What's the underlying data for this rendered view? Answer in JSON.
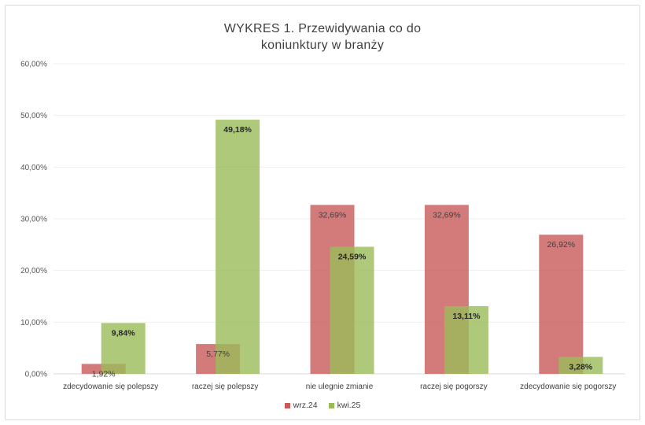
{
  "chart_data": {
    "type": "bar",
    "title_lines": [
      "WYKRES 1. Przewidywania co do",
      "koniunktury w branży"
    ],
    "categories": [
      "zdecydowanie się polepszy",
      "raczej się polepszy",
      "nie ulegnie zmianie",
      "raczej się pogorszy",
      "zdecydowanie się pogorszy"
    ],
    "series": [
      {
        "name": "wrz.24",
        "color": "#c85a5a",
        "values": [
          1.92,
          5.77,
          32.69,
          32.69,
          26.92
        ],
        "labels": [
          "1,92%",
          "5,77%",
          "32,69%",
          "32,69%",
          "26,92%"
        ]
      },
      {
        "name": "kwi.25",
        "color": "#9bbb59",
        "values": [
          9.84,
          49.18,
          24.59,
          13.11,
          3.28
        ],
        "labels": [
          "9,84%",
          "49,18%",
          "24,59%",
          "13,11%",
          "3,28%"
        ]
      }
    ],
    "ylim": [
      0,
      60
    ],
    "yticks": [
      "0,00%",
      "10,00%",
      "20,00%",
      "30,00%",
      "40,00%",
      "50,00%",
      "60,00%"
    ],
    "grid": true,
    "legend_position": "bottom"
  }
}
